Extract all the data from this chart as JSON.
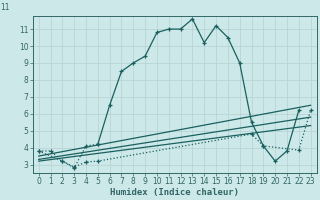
{
  "xlabel": "Humidex (Indice chaleur)",
  "bg_color": "#cde8e8",
  "grid_color": "#b8d4d4",
  "line_color": "#1a6060",
  "axis_color": "#336666",
  "xlim": [
    -0.5,
    23.5
  ],
  "ylim": [
    2.5,
    11.8
  ],
  "xticks": [
    0,
    1,
    2,
    3,
    4,
    5,
    6,
    7,
    8,
    9,
    10,
    11,
    12,
    13,
    14,
    15,
    16,
    17,
    18,
    19,
    20,
    21,
    22,
    23
  ],
  "yticks": [
    3,
    4,
    5,
    6,
    7,
    8,
    9,
    10,
    11
  ],
  "curve1_x": [
    0,
    1,
    2,
    3,
    4,
    5,
    6,
    7,
    8,
    9,
    10,
    11,
    12,
    13,
    14,
    15,
    16,
    17,
    18,
    19,
    20,
    21,
    22
  ],
  "curve1_y": [
    3.8,
    3.8,
    3.2,
    2.8,
    4.1,
    4.2,
    6.5,
    8.5,
    9.0,
    9.4,
    10.8,
    11.0,
    11.0,
    11.6,
    10.2,
    11.2,
    10.5,
    9.0,
    5.5,
    4.1,
    3.2,
    3.8,
    6.2
  ],
  "curve2_x": [
    0,
    2,
    3,
    4,
    5,
    18,
    19,
    22,
    23
  ],
  "curve2_y": [
    3.8,
    3.2,
    2.85,
    3.15,
    3.2,
    4.8,
    4.1,
    3.85,
    6.2
  ],
  "line1_x": [
    0,
    23
  ],
  "line1_y": [
    3.2,
    5.3
  ],
  "line2_x": [
    0,
    23
  ],
  "line2_y": [
    3.3,
    5.8
  ],
  "line3_x": [
    0,
    23
  ],
  "line3_y": [
    3.5,
    6.5
  ]
}
